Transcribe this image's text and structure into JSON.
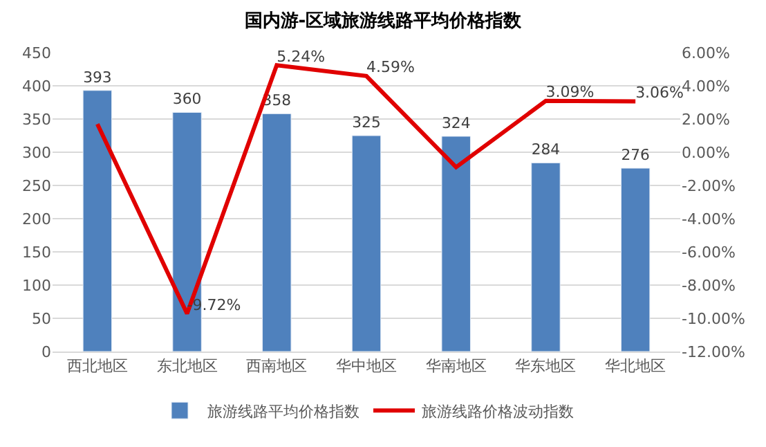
{
  "chart_data": {
    "type": "bar",
    "title": "国内游-区域旅游线路平均价格指数",
    "categories": [
      "西北地区",
      "东北地区",
      "西南地区",
      "华中地区",
      "华南地区",
      "华东地区",
      "华北地区"
    ],
    "series": [
      {
        "name": "旅游线路平均价格指数",
        "color": "#4f81bd",
        "values": [
          393,
          360,
          358,
          325,
          324,
          284,
          276
        ],
        "value_labels": [
          "393",
          "360",
          "358",
          "325",
          "324",
          "284",
          "276"
        ]
      },
      {
        "name": "旅游线路价格波动指数",
        "type": "line",
        "axis": "y2",
        "color": "#e00000",
        "values": [
          1.7,
          -9.72,
          5.24,
          4.59,
          -0.9,
          3.09,
          3.06
        ],
        "value_labels": [
          null,
          "-9.72%",
          "5.24%",
          "4.59%",
          null,
          "3.09%",
          "3.06%"
        ]
      }
    ],
    "ylim": [
      0,
      450
    ],
    "yticks": [
      0,
      50,
      100,
      150,
      200,
      250,
      300,
      350,
      400,
      450
    ],
    "y2lim": [
      -12,
      6
    ],
    "y2ticks": [
      {
        "value": -12,
        "label": "-12.00%"
      },
      {
        "value": -10,
        "label": "-10.00%"
      },
      {
        "value": -8,
        "label": "-8.00%"
      },
      {
        "value": -6,
        "label": "-6.00%"
      },
      {
        "value": -4,
        "label": "-4.00%"
      },
      {
        "value": -2,
        "label": "-2.00%"
      },
      {
        "value": 0,
        "label": "0.00%"
      },
      {
        "value": 2,
        "label": "2.00%"
      },
      {
        "value": 4,
        "label": "4.00%"
      },
      {
        "value": 6,
        "label": "6.00%"
      }
    ],
    "grid": "y",
    "legend": "bottom",
    "marker": "none",
    "line_style": "solid"
  }
}
